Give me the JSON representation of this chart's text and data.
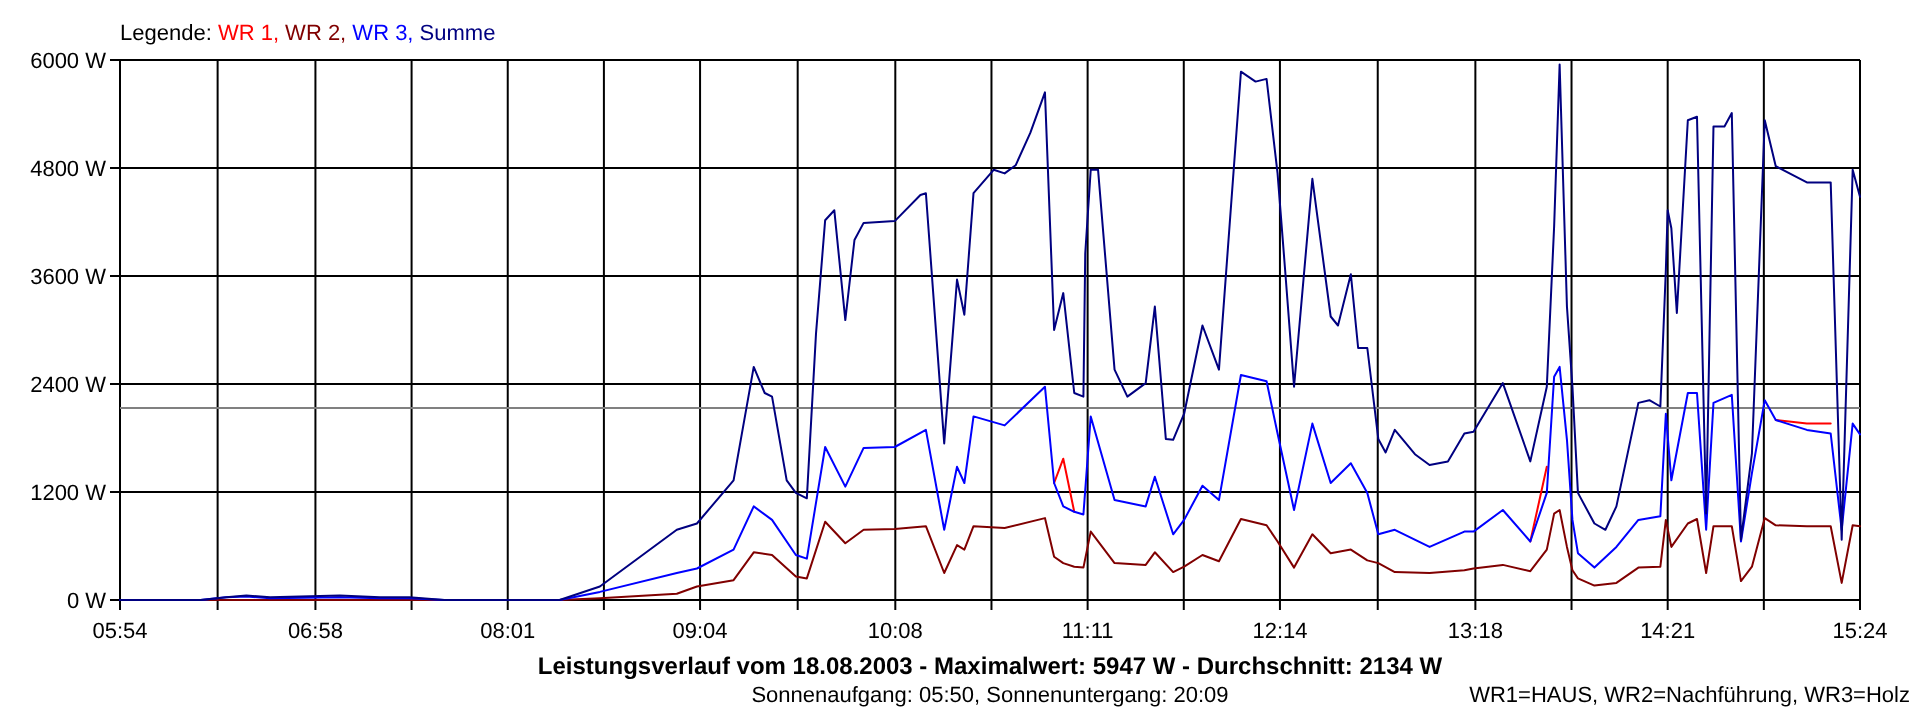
{
  "chart_data": {
    "type": "line",
    "title": "Leistungsverlauf vom 18.08.2003 - Maximalwert: 5947 W - Durchschnitt: 2134 W",
    "subtitle": "Sonnenaufgang: 05:50, Sonnenuntergang: 20:09",
    "annotations": [
      "WR1=HAUS, WR2=Nachführung, WR3=Holz"
    ],
    "legend_title": "Legende:",
    "legend": "top left",
    "grid": true,
    "line_style": "solid",
    "x": [
      5.9,
      6.34,
      6.48,
      6.59,
      6.72,
      7.1,
      7.32,
      7.48,
      7.67,
      8.3,
      8.52,
      8.94,
      9.05,
      9.25,
      9.36,
      9.46,
      9.59,
      9.65,
      9.75,
      9.86,
      9.96,
      10.13,
      10.3,
      10.4,
      10.47,
      10.51,
      10.56,
      10.73,
      10.95,
      11,
      11.05,
      11.11,
      11.16,
      11.2,
      11.33,
      11.5,
      11.55,
      11.65,
      11.71,
      11.81,
      11.9,
      12.02,
      12.16,
      12.22,
      12.31,
      12.41,
      12.51,
      12.62,
      12.71,
      12.77,
      12.86,
      13.05,
      13.24,
      13.29,
      13.45,
      13.6,
      13.69,
      13.73,
      13.76,
      13.8,
      13.83,
      13.86,
      13.95,
      14.07,
      14.19,
      14.31,
      14.34,
      14.37,
      14.46,
      14.51,
      14.56,
      14.6,
      14.7,
      14.75,
      14.81,
      14.88,
      14.94,
      15.11,
      15.24,
      15.3,
      15.36,
      15.4
    ],
    "series": [
      {
        "name": "WR 1,",
        "color": "#ff0000",
        "values": [
          null,
          null,
          null,
          null,
          null,
          null,
          null,
          null,
          null,
          null,
          null,
          null,
          null,
          null,
          null,
          null,
          null,
          null,
          null,
          null,
          null,
          null,
          null,
          null,
          null,
          null,
          null,
          null,
          null,
          1300,
          1570,
          980,
          null,
          null,
          null,
          null,
          null,
          null,
          null,
          null,
          null,
          null,
          null,
          null,
          null,
          null,
          null,
          null,
          null,
          null,
          null,
          null,
          null,
          null,
          null,
          650,
          1480,
          null,
          null,
          null,
          null,
          null,
          null,
          null,
          null,
          null,
          null,
          null,
          null,
          null,
          null,
          null,
          null,
          null,
          null,
          null,
          2000,
          1960,
          1960,
          null,
          null,
          null
        ]
      },
      {
        "name": "WR 2,",
        "color": "#800000",
        "values": [
          0,
          0,
          0,
          0,
          0,
          0,
          0,
          0,
          0,
          0,
          20,
          70,
          150,
          220,
          530,
          500,
          260,
          240,
          870,
          630,
          780,
          790,
          820,
          300,
          610,
          560,
          820,
          800,
          910,
          480,
          410,
          370,
          360,
          760,
          410,
          390,
          530,
          310,
          370,
          500,
          430,
          900,
          830,
          650,
          360,
          730,
          520,
          560,
          440,
          410,
          310,
          300,
          330,
          350,
          390,
          320,
          560,
          960,
          1000,
          590,
          330,
          240,
          160,
          190,
          360,
          370,
          890,
          590,
          850,
          900,
          300,
          820,
          820,
          210,
          370,
          910,
          830,
          820,
          820,
          190,
          830,
          820
        ]
      },
      {
        "name": "WR 3,",
        "color": "#0000ff",
        "values": [
          0,
          0,
          30,
          40,
          20,
          30,
          20,
          20,
          0,
          0,
          90,
          300,
          350,
          560,
          1040,
          890,
          500,
          460,
          1700,
          1260,
          1690,
          1700,
          1890,
          780,
          1480,
          1300,
          2040,
          1940,
          2370,
          1300,
          1040,
          980,
          950,
          2040,
          1110,
          1040,
          1370,
          730,
          890,
          1270,
          1110,
          2500,
          2430,
          1850,
          1000,
          1960,
          1300,
          1520,
          1190,
          730,
          780,
          590,
          760,
          760,
          1000,
          650,
          1190,
          2480,
          2590,
          1780,
          890,
          520,
          360,
          590,
          890,
          930,
          2070,
          1330,
          2300,
          2300,
          780,
          2190,
          2280,
          650,
          1410,
          2220,
          2000,
          1890,
          1850,
          780,
          1960,
          1840
        ]
      },
      {
        "name": "Summe",
        "color": "#000080",
        "x": [
          5.9,
          6.34,
          6.48,
          6.59,
          6.72,
          7.1,
          7.32,
          7.48,
          7.67,
          8.3,
          8.52,
          8.94,
          9.05,
          9.25,
          9.36,
          9.42,
          9.46,
          9.54,
          9.59,
          9.65,
          9.7,
          9.75,
          9.8,
          9.86,
          9.91,
          9.96,
          10.13,
          10.27,
          10.3,
          10.4,
          10.47,
          10.51,
          10.56,
          10.67,
          10.73,
          10.79,
          10.87,
          10.95,
          11,
          11.05,
          11.11,
          11.16,
          11.17,
          11.2,
          11.24,
          11.33,
          11.4,
          11.5,
          11.55,
          11.61,
          11.65,
          11.71,
          11.81,
          11.9,
          12.02,
          12.1,
          12.16,
          12.22,
          12.26,
          12.31,
          12.41,
          12.51,
          12.55,
          12.62,
          12.66,
          12.71,
          12.77,
          12.81,
          12.86,
          12.97,
          13.05,
          13.15,
          13.24,
          13.29,
          13.45,
          13.6,
          13.69,
          13.73,
          13.76,
          13.8,
          13.83,
          13.86,
          13.95,
          14.01,
          14.07,
          14.19,
          14.25,
          14.31,
          14.34,
          14.35,
          14.37,
          14.4,
          14.46,
          14.51,
          14.56,
          14.6,
          14.66,
          14.7,
          14.75,
          14.81,
          14.88,
          14.94,
          15.11,
          15.24,
          15.3,
          15.36,
          15.4
        ],
        "values": [
          0,
          0,
          30,
          50,
          30,
          50,
          30,
          30,
          0,
          0,
          150,
          780,
          850,
          1330,
          2590,
          2300,
          2260,
          1330,
          1190,
          1130,
          2960,
          4220,
          4330,
          3110,
          4000,
          4190,
          4210,
          4500,
          4520,
          1740,
          3560,
          3170,
          4520,
          4780,
          4740,
          4830,
          5190,
          5640,
          3000,
          3410,
          2300,
          2260,
          3850,
          4780,
          4780,
          2560,
          2260,
          2410,
          3260,
          1790,
          1780,
          2070,
          3050,
          2560,
          5870,
          5760,
          5790,
          4740,
          3700,
          2370,
          4680,
          3150,
          3050,
          3620,
          2800,
          2800,
          1790,
          1640,
          1890,
          1620,
          1500,
          1540,
          1850,
          1870,
          2410,
          1540,
          2370,
          4150,
          5950,
          3260,
          2370,
          1190,
          850,
          780,
          1040,
          2190,
          2220,
          2150,
          3670,
          4330,
          4130,
          3190,
          5330,
          5370,
          960,
          5260,
          5260,
          5410,
          670,
          1630,
          5330,
          4820,
          4640,
          4640,
          670,
          4780,
          4480
        ]
      }
    ],
    "xlim": [
      5.9,
      15.4
    ],
    "xticks": [
      {
        "value": 5.9,
        "label": "05:54"
      },
      {
        "value": 6.433,
        "label": null
      },
      {
        "value": 6.967,
        "label": "06:58"
      },
      {
        "value": 7.492,
        "label": null
      },
      {
        "value": 8.017,
        "label": "08:01"
      },
      {
        "value": 8.542,
        "label": null
      },
      {
        "value": 9.067,
        "label": "09:04"
      },
      {
        "value": 9.6,
        "label": null
      },
      {
        "value": 10.133,
        "label": "10:08"
      },
      {
        "value": 10.658,
        "label": null
      },
      {
        "value": 11.183,
        "label": "11:11"
      },
      {
        "value": 11.708,
        "label": null
      },
      {
        "value": 12.233,
        "label": "12:14"
      },
      {
        "value": 12.767,
        "label": null
      },
      {
        "value": 13.3,
        "label": "13:18"
      },
      {
        "value": 13.825,
        "label": null
      },
      {
        "value": 14.35,
        "label": "14:21"
      },
      {
        "value": 14.875,
        "label": null
      },
      {
        "value": 15.4,
        "label": "15:24"
      }
    ],
    "ylim": [
      0,
      6000
    ],
    "yticks": [
      {
        "value": 0,
        "label": "0 W"
      },
      {
        "value": 1200,
        "label": "1200 W"
      },
      {
        "value": 2400,
        "label": "2400 W"
      },
      {
        "value": 3600,
        "label": "3600 W"
      },
      {
        "value": 4800,
        "label": "4800 W"
      },
      {
        "value": 6000,
        "label": "6000 W"
      }
    ],
    "ref_lines": [
      {
        "axis": "y",
        "value": 2134,
        "color": "#808080"
      }
    ]
  }
}
